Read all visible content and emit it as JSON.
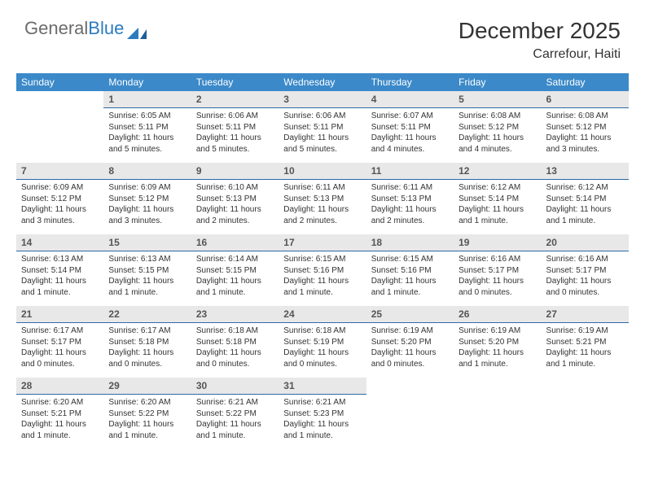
{
  "logo": {
    "text_gray": "General",
    "text_blue": "Blue"
  },
  "title": "December 2025",
  "location": "Carrefour, Haiti",
  "colors": {
    "header_bg": "#3b89c9",
    "header_text": "#ffffff",
    "daynum_bg": "#e8e8e8",
    "daynum_border": "#2b6aa5",
    "body_text": "#333333",
    "logo_gray": "#6b6b6b",
    "logo_blue": "#2b7bbf"
  },
  "day_headers": [
    "Sunday",
    "Monday",
    "Tuesday",
    "Wednesday",
    "Thursday",
    "Friday",
    "Saturday"
  ],
  "weeks": [
    [
      {
        "n": "",
        "sr": "",
        "ss": "",
        "dl": ""
      },
      {
        "n": "1",
        "sr": "6:05 AM",
        "ss": "5:11 PM",
        "dl": "11 hours and 5 minutes."
      },
      {
        "n": "2",
        "sr": "6:06 AM",
        "ss": "5:11 PM",
        "dl": "11 hours and 5 minutes."
      },
      {
        "n": "3",
        "sr": "6:06 AM",
        "ss": "5:11 PM",
        "dl": "11 hours and 5 minutes."
      },
      {
        "n": "4",
        "sr": "6:07 AM",
        "ss": "5:11 PM",
        "dl": "11 hours and 4 minutes."
      },
      {
        "n": "5",
        "sr": "6:08 AM",
        "ss": "5:12 PM",
        "dl": "11 hours and 4 minutes."
      },
      {
        "n": "6",
        "sr": "6:08 AM",
        "ss": "5:12 PM",
        "dl": "11 hours and 3 minutes."
      }
    ],
    [
      {
        "n": "7",
        "sr": "6:09 AM",
        "ss": "5:12 PM",
        "dl": "11 hours and 3 minutes."
      },
      {
        "n": "8",
        "sr": "6:09 AM",
        "ss": "5:12 PM",
        "dl": "11 hours and 3 minutes."
      },
      {
        "n": "9",
        "sr": "6:10 AM",
        "ss": "5:13 PM",
        "dl": "11 hours and 2 minutes."
      },
      {
        "n": "10",
        "sr": "6:11 AM",
        "ss": "5:13 PM",
        "dl": "11 hours and 2 minutes."
      },
      {
        "n": "11",
        "sr": "6:11 AM",
        "ss": "5:13 PM",
        "dl": "11 hours and 2 minutes."
      },
      {
        "n": "12",
        "sr": "6:12 AM",
        "ss": "5:14 PM",
        "dl": "11 hours and 1 minute."
      },
      {
        "n": "13",
        "sr": "6:12 AM",
        "ss": "5:14 PM",
        "dl": "11 hours and 1 minute."
      }
    ],
    [
      {
        "n": "14",
        "sr": "6:13 AM",
        "ss": "5:14 PM",
        "dl": "11 hours and 1 minute."
      },
      {
        "n": "15",
        "sr": "6:13 AM",
        "ss": "5:15 PM",
        "dl": "11 hours and 1 minute."
      },
      {
        "n": "16",
        "sr": "6:14 AM",
        "ss": "5:15 PM",
        "dl": "11 hours and 1 minute."
      },
      {
        "n": "17",
        "sr": "6:15 AM",
        "ss": "5:16 PM",
        "dl": "11 hours and 1 minute."
      },
      {
        "n": "18",
        "sr": "6:15 AM",
        "ss": "5:16 PM",
        "dl": "11 hours and 1 minute."
      },
      {
        "n": "19",
        "sr": "6:16 AM",
        "ss": "5:17 PM",
        "dl": "11 hours and 0 minutes."
      },
      {
        "n": "20",
        "sr": "6:16 AM",
        "ss": "5:17 PM",
        "dl": "11 hours and 0 minutes."
      }
    ],
    [
      {
        "n": "21",
        "sr": "6:17 AM",
        "ss": "5:17 PM",
        "dl": "11 hours and 0 minutes."
      },
      {
        "n": "22",
        "sr": "6:17 AM",
        "ss": "5:18 PM",
        "dl": "11 hours and 0 minutes."
      },
      {
        "n": "23",
        "sr": "6:18 AM",
        "ss": "5:18 PM",
        "dl": "11 hours and 0 minutes."
      },
      {
        "n": "24",
        "sr": "6:18 AM",
        "ss": "5:19 PM",
        "dl": "11 hours and 0 minutes."
      },
      {
        "n": "25",
        "sr": "6:19 AM",
        "ss": "5:20 PM",
        "dl": "11 hours and 0 minutes."
      },
      {
        "n": "26",
        "sr": "6:19 AM",
        "ss": "5:20 PM",
        "dl": "11 hours and 1 minute."
      },
      {
        "n": "27",
        "sr": "6:19 AM",
        "ss": "5:21 PM",
        "dl": "11 hours and 1 minute."
      }
    ],
    [
      {
        "n": "28",
        "sr": "6:20 AM",
        "ss": "5:21 PM",
        "dl": "11 hours and 1 minute."
      },
      {
        "n": "29",
        "sr": "6:20 AM",
        "ss": "5:22 PM",
        "dl": "11 hours and 1 minute."
      },
      {
        "n": "30",
        "sr": "6:21 AM",
        "ss": "5:22 PM",
        "dl": "11 hours and 1 minute."
      },
      {
        "n": "31",
        "sr": "6:21 AM",
        "ss": "5:23 PM",
        "dl": "11 hours and 1 minute."
      },
      {
        "n": "",
        "sr": "",
        "ss": "",
        "dl": ""
      },
      {
        "n": "",
        "sr": "",
        "ss": "",
        "dl": ""
      },
      {
        "n": "",
        "sr": "",
        "ss": "",
        "dl": ""
      }
    ]
  ],
  "labels": {
    "sunrise": "Sunrise:",
    "sunset": "Sunset:",
    "daylight": "Daylight:"
  }
}
